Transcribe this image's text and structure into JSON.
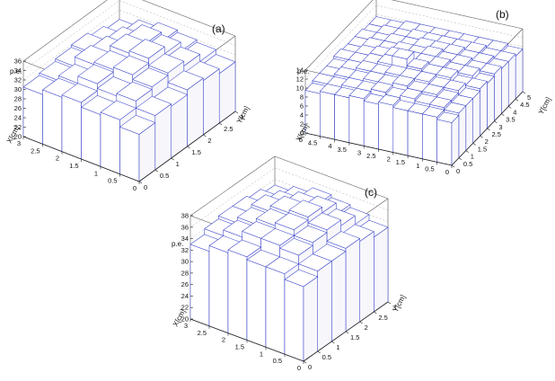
{
  "chart_data": [
    {
      "type": "bar3d",
      "panel_label": "(a)",
      "zlabel": "p.e.",
      "xlabel": "X[cm]",
      "ylabel": "Y[cm]",
      "x_ticks": [
        "0",
        "0.5",
        "1",
        "1.5",
        "2",
        "2.5",
        "3"
      ],
      "y_ticks": [
        "0",
        "0.5",
        "1",
        "1.5",
        "2",
        "2.5",
        "3"
      ],
      "z_ticks": [
        "20",
        "22",
        "24",
        "26",
        "28",
        "30",
        "32",
        "34",
        "36"
      ],
      "xlim": [
        0,
        3
      ],
      "ylim": [
        0,
        3
      ],
      "zlim": [
        20,
        36
      ],
      "grid_x": 6,
      "grid_y": 6,
      "values": [
        [
          30.0,
          31.5,
          31.0,
          32.0,
          31.5,
          30.5
        ],
        [
          31.5,
          33.0,
          32.5,
          33.5,
          32.0,
          31.0
        ],
        [
          31.0,
          33.5,
          34.5,
          34.0,
          33.5,
          31.5
        ],
        [
          32.0,
          34.0,
          35.5,
          35.0,
          33.0,
          32.0
        ],
        [
          31.5,
          33.0,
          34.0,
          34.5,
          32.5,
          31.0
        ],
        [
          30.5,
          31.5,
          32.0,
          32.5,
          31.5,
          30.0
        ]
      ]
    },
    {
      "type": "bar3d",
      "panel_label": "(b)",
      "zlabel": "p.e.",
      "xlabel": "X[cm]",
      "ylabel": "Y[cm]",
      "x_ticks": [
        "0",
        "0.5",
        "1",
        "1.5",
        "2",
        "2.5",
        "3",
        "3.5",
        "4",
        "4.5",
        "5"
      ],
      "y_ticks": [
        "0",
        "0.5",
        "1",
        "1.5",
        "2",
        "2.5",
        "3",
        "3.5",
        "4",
        "4.5",
        "5"
      ],
      "z_ticks": [
        "0",
        "2",
        "4",
        "6",
        "8",
        "10",
        "12",
        "14"
      ],
      "xlim": [
        0,
        5
      ],
      "ylim": [
        0,
        5
      ],
      "zlim": [
        0,
        14
      ],
      "grid_x": 10,
      "grid_y": 10,
      "values": [
        [
          9.5,
          10.0,
          10.0,
          10.0,
          10.5,
          10.0,
          10.5,
          10.0,
          10.0,
          9.5
        ],
        [
          10.0,
          10.5,
          10.5,
          11.0,
          10.5,
          11.0,
          10.5,
          10.5,
          10.0,
          10.0
        ],
        [
          10.0,
          10.5,
          11.0,
          11.0,
          11.5,
          11.0,
          11.0,
          10.5,
          10.5,
          10.0
        ],
        [
          10.0,
          11.0,
          11.0,
          11.5,
          11.5,
          11.5,
          11.0,
          11.0,
          10.5,
          10.0
        ],
        [
          10.5,
          10.5,
          11.5,
          11.5,
          12.0,
          13.5,
          11.5,
          11.0,
          10.5,
          10.5
        ],
        [
          10.0,
          11.0,
          11.0,
          11.5,
          11.5,
          11.5,
          11.5,
          11.0,
          10.5,
          10.0
        ],
        [
          10.5,
          10.5,
          11.0,
          11.0,
          11.5,
          11.0,
          11.0,
          10.5,
          10.5,
          10.0
        ],
        [
          10.0,
          10.5,
          10.5,
          11.0,
          11.0,
          11.0,
          10.5,
          10.5,
          10.0,
          10.0
        ],
        [
          10.0,
          10.0,
          10.5,
          10.5,
          10.5,
          10.5,
          10.5,
          10.0,
          10.0,
          9.5
        ],
        [
          9.5,
          10.0,
          10.0,
          10.0,
          10.0,
          10.0,
          10.0,
          10.0,
          9.5,
          9.5
        ]
      ]
    },
    {
      "type": "bar3d",
      "panel_label": "(c)",
      "zlabel": "p.e.",
      "xlabel": "X[cm]",
      "ylabel": "Y[cm]",
      "x_ticks": [
        "0",
        "0.5",
        "1",
        "1.5",
        "2",
        "2.5",
        "3"
      ],
      "y_ticks": [
        "0",
        "0.5",
        "1",
        "1.5",
        "2",
        "2.5",
        "3"
      ],
      "z_ticks": [
        "20",
        "22",
        "24",
        "26",
        "28",
        "30",
        "32",
        "34",
        "36",
        "38"
      ],
      "xlim": [
        0,
        3
      ],
      "ylim": [
        0,
        3
      ],
      "zlim": [
        20,
        38
      ],
      "grid_x": 6,
      "grid_y": 6,
      "values": [
        [
          33.0,
          34.0,
          34.0,
          34.5,
          34.0,
          33.0
        ],
        [
          34.0,
          35.5,
          36.0,
          36.0,
          35.0,
          34.0
        ],
        [
          34.0,
          36.0,
          37.0,
          36.5,
          35.5,
          34.5
        ],
        [
          34.5,
          36.5,
          37.5,
          37.0,
          36.0,
          34.5
        ],
        [
          34.0,
          35.5,
          36.5,
          36.0,
          35.0,
          34.0
        ],
        [
          33.0,
          34.0,
          34.5,
          35.0,
          34.0,
          33.0
        ]
      ]
    }
  ]
}
